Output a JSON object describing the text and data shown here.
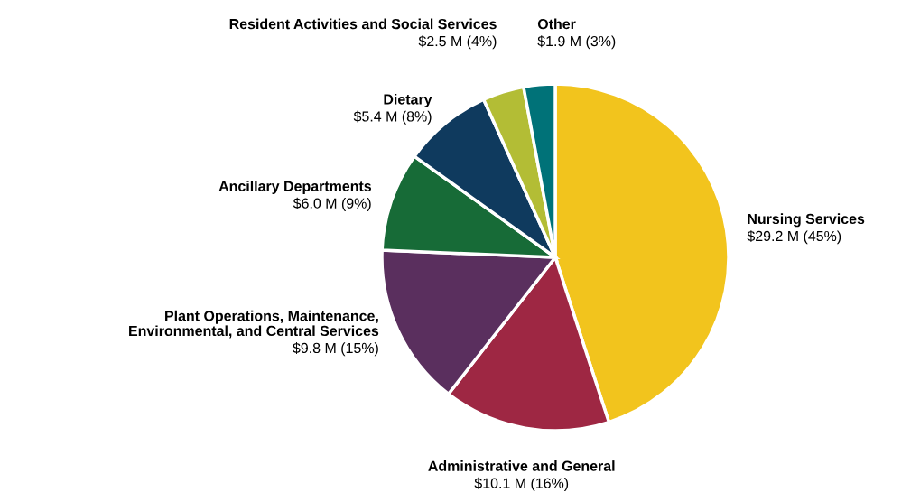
{
  "chart_data": {
    "type": "pie",
    "categories": [
      "Nursing Services",
      "Administrative and General",
      "Plant Operations, Maintenance,\nEnvironmental, and Central Services",
      "Ancillary Departments",
      "Dietary",
      "Resident Activities and Social Services",
      "Other"
    ],
    "values": [
      29.2,
      10.1,
      9.8,
      6.0,
      5.4,
      2.5,
      1.9
    ],
    "value_labels": [
      "$29.2 M (45%)",
      "$10.1 M (16%)",
      "$9.8 M (15%)",
      "$6.0 M (9%)",
      "$5.4 M (8%)",
      "$2.5 M (4%)",
      "$1.9 M (3%)"
    ],
    "colors": [
      "#f2c41d",
      "#9e2743",
      "#5a2f5e",
      "#176b37",
      "#0f3a5e",
      "#b3bd35",
      "#007278"
    ],
    "legend": false
  }
}
